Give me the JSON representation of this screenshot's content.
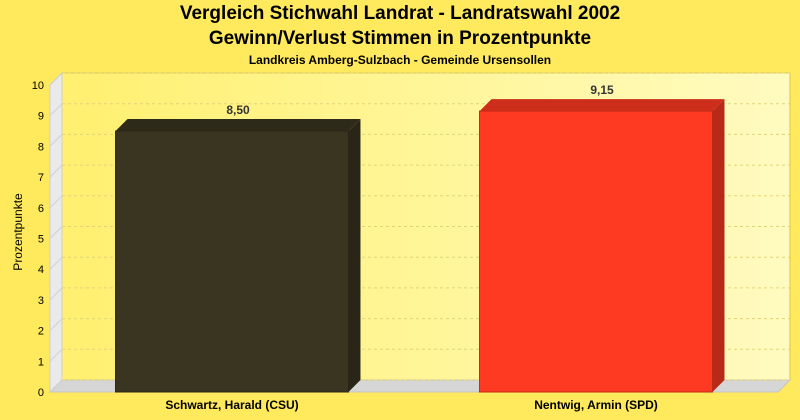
{
  "chart_data": {
    "type": "bar",
    "title": "Vergleich Stichwahl Landrat - Landratswahl 2002",
    "subtitle": "Gewinn/Verlust Stimmen in Prozentpunkte",
    "subsubtitle": "Landkreis Amberg-Sulzbach - Gemeinde Ursensollen",
    "ylabel": "Prozentpunkte",
    "xlabel": "",
    "ylim": [
      0,
      10
    ],
    "yticks": [
      0,
      1,
      2,
      3,
      4,
      5,
      6,
      7,
      8,
      9,
      10
    ],
    "grid": true,
    "categories": [
      "Schwartz, Harald (CSU)",
      "Nentwig, Armin (SPD)"
    ],
    "values": [
      8.5,
      9.15
    ],
    "value_labels": [
      "8,50",
      "9,15"
    ],
    "colors": [
      "#3a3520",
      "#ff3a22"
    ]
  }
}
